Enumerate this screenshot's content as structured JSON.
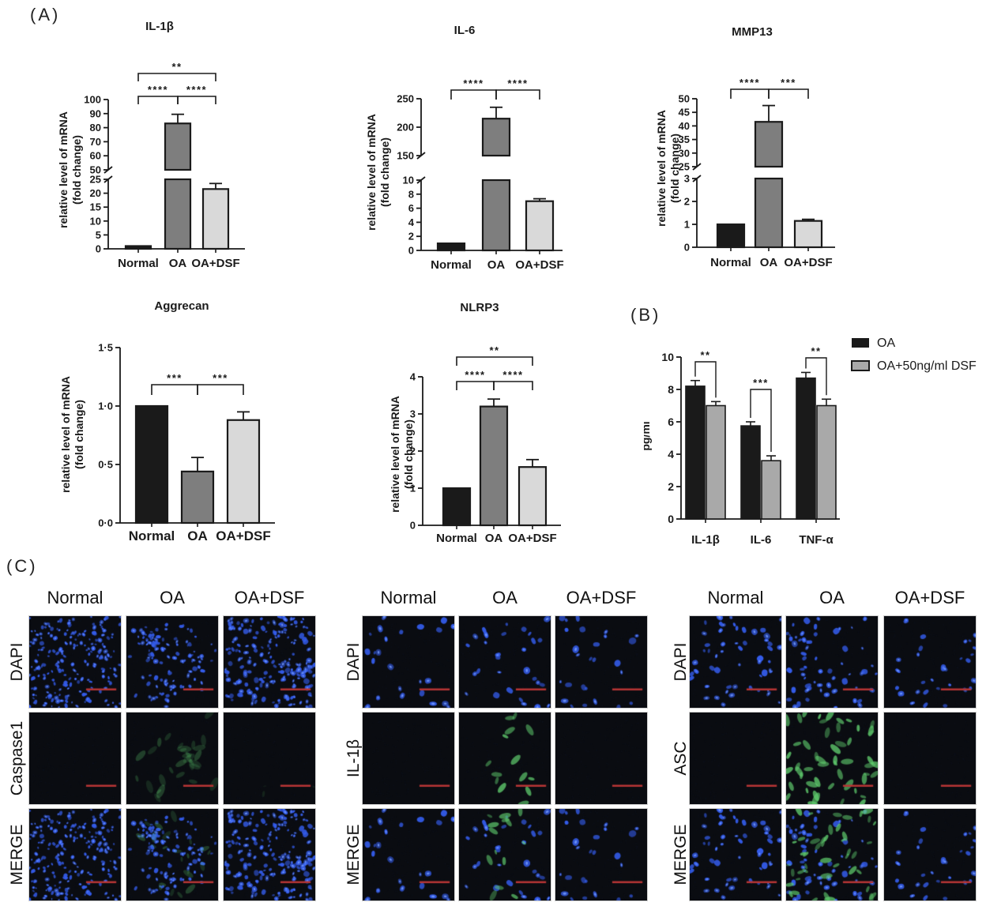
{
  "panels": {
    "a": "(A)",
    "b": "(B)",
    "c": "(C)"
  },
  "colors": {
    "bar_normal": "#1a1a1a",
    "bar_oa": "#7e7e7e",
    "bar_oadsf": "#d9d9d9",
    "elisa_oa": "#1a1a1a",
    "elisa_dsf": "#a9a9a9",
    "axis": "#1a1a1a",
    "scalebar": "#b63434",
    "dapi_blue": "#345ceb",
    "signal_green": "#60cd6e"
  },
  "chart_data": [
    {
      "id": "il1b",
      "type": "bar",
      "title": "IL-1β",
      "ylabel": [
        "relative level of mRNA",
        "(fold change)"
      ],
      "categories": [
        "Normal",
        "OA",
        "OA+DSF"
      ],
      "values": [
        1,
        83,
        21.5
      ],
      "errors": [
        0,
        6.5,
        2
      ],
      "axis": {
        "segments": [
          {
            "range": [
              0,
              25
            ],
            "ticks": [
              0,
              5,
              10,
              15,
              20,
              25
            ]
          },
          {
            "range": [
              50,
              100
            ],
            "ticks": [
              50,
              60,
              70,
              80,
              90,
              100
            ]
          }
        ]
      },
      "significance": [
        {
          "pair": [
            0,
            1
          ],
          "label": "****",
          "tier": 1
        },
        {
          "pair": [
            1,
            2
          ],
          "label": "****",
          "tier": 1
        },
        {
          "pair": [
            0,
            2
          ],
          "label": "**",
          "tier": 2
        }
      ]
    },
    {
      "id": "il6",
      "type": "bar",
      "title": "IL-6",
      "ylabel": [
        "relative level of mRNA",
        "(fold change)"
      ],
      "categories": [
        "Normal",
        "OA",
        "OA+DSF"
      ],
      "values": [
        1,
        215,
        7
      ],
      "errors": [
        0,
        20,
        0.35
      ],
      "axis": {
        "segments": [
          {
            "range": [
              0,
              10
            ],
            "ticks": [
              0,
              2,
              4,
              6,
              8,
              10
            ]
          },
          {
            "range": [
              150,
              250
            ],
            "ticks": [
              150,
              200,
              250
            ]
          }
        ]
      },
      "significance": [
        {
          "pair": [
            0,
            1
          ],
          "label": "****",
          "tier": 1
        },
        {
          "pair": [
            1,
            2
          ],
          "label": "****",
          "tier": 1
        }
      ]
    },
    {
      "id": "mmp13",
      "type": "bar",
      "title": "MMP13",
      "ylabel": [
        "relative level of mRNA",
        "(fold change)"
      ],
      "categories": [
        "Normal",
        "OA",
        "OA+DSF"
      ],
      "values": [
        1,
        41.5,
        1.15
      ],
      "errors": [
        0,
        6,
        0.07
      ],
      "axis": {
        "segments": [
          {
            "range": [
              0,
              3
            ],
            "ticks": [
              0,
              1,
              2,
              3
            ]
          },
          {
            "range": [
              25,
              50
            ],
            "ticks": [
              25,
              30,
              35,
              40,
              45,
              50
            ]
          }
        ]
      },
      "significance": [
        {
          "pair": [
            0,
            1
          ],
          "label": "****",
          "tier": 1
        },
        {
          "pair": [
            1,
            2
          ],
          "label": "***",
          "tier": 1
        }
      ]
    },
    {
      "id": "aggrecan",
      "type": "bar",
      "title": "Aggrecan",
      "ylabel": [
        "relative level of mRNA",
        "(fold change)"
      ],
      "categories": [
        "Normal",
        "OA",
        "OA+DSF"
      ],
      "values": [
        1.0,
        0.44,
        0.88
      ],
      "errors": [
        0,
        0.12,
        0.07
      ],
      "axis": {
        "segments": [
          {
            "range": [
              0,
              1.5
            ],
            "ticks": [
              0,
              0.5,
              1,
              1.5
            ],
            "tick_labels": [
              "0·0",
              "0·5",
              "1·0",
              "1·5"
            ]
          }
        ]
      },
      "significance": [
        {
          "pair": [
            0,
            1
          ],
          "label": "***",
          "tier": 1
        },
        {
          "pair": [
            1,
            2
          ],
          "label": "***",
          "tier": 1
        }
      ]
    },
    {
      "id": "nlrp3",
      "type": "bar",
      "title": "NLRP3",
      "ylabel": [
        "relative level of mRNA",
        "(fold change)"
      ],
      "categories": [
        "Normal",
        "OA",
        "OA+DSF"
      ],
      "values": [
        1,
        3.2,
        1.57
      ],
      "errors": [
        0,
        0.2,
        0.2
      ],
      "axis": {
        "segments": [
          {
            "range": [
              0,
              4
            ],
            "ticks": [
              0,
              1,
              2,
              3,
              4
            ]
          }
        ]
      },
      "significance": [
        {
          "pair": [
            0,
            1
          ],
          "label": "****",
          "tier": 1
        },
        {
          "pair": [
            1,
            2
          ],
          "label": "****",
          "tier": 1
        },
        {
          "pair": [
            0,
            2
          ],
          "label": "**",
          "tier": 2
        }
      ]
    },
    {
      "id": "elisa",
      "type": "grouped-bar",
      "title": "",
      "ylabel": [
        "pg/ml"
      ],
      "categories": [
        "IL-1β",
        "IL-6",
        "TNF-α"
      ],
      "series": [
        {
          "name": "OA",
          "values": [
            8.2,
            5.75,
            8.7
          ],
          "errors": [
            0.35,
            0.25,
            0.35
          ]
        },
        {
          "name": "OA+50ng/ml DSF",
          "values": [
            7.0,
            3.6,
            7.0
          ],
          "errors": [
            0.25,
            0.3,
            0.4
          ]
        }
      ],
      "axis": {
        "segments": [
          {
            "range": [
              0,
              10
            ],
            "ticks": [
              0,
              2,
              4,
              6,
              8,
              10
            ]
          }
        ]
      },
      "significance": [
        {
          "group": 0,
          "label": "**"
        },
        {
          "group": 1,
          "label": "***"
        },
        {
          "group": 2,
          "label": "**"
        }
      ],
      "legend": [
        "OA",
        "OA+50ng/ml DSF"
      ]
    }
  ],
  "panel_c": {
    "groups": [
      {
        "columns": [
          "Normal",
          "OA",
          "OA+DSF"
        ],
        "rows": [
          {
            "label": "DAPI",
            "cells": [
              {
                "seed": 11,
                "b": 210,
                "bs": 2.1
              },
              {
                "seed": 12,
                "b": 115,
                "bs": 2.3,
                "cluster": true
              },
              {
                "seed": 13,
                "b": 195,
                "bs": 2.6
              }
            ]
          },
          {
            "label": "Caspase1",
            "cells": [
              {
                "seed": 21
              },
              {
                "seed": 22,
                "g": 30,
                "gs": 6,
                "ga": 0.28,
                "cluster": true
              },
              {
                "seed": 23,
                "g": 3,
                "gs": 3,
                "ga": 0.15
              }
            ]
          },
          {
            "label": "MERGE",
            "cells": [
              {
                "seed": 11,
                "b": 210,
                "bs": 2.1
              },
              {
                "seed": 12,
                "b": 115,
                "bs": 2.3,
                "cluster": true,
                "g": 22,
                "gs": 5,
                "ga": 0.3
              },
              {
                "seed": 13,
                "b": 195,
                "bs": 2.6
              }
            ]
          }
        ]
      },
      {
        "columns": [
          "Normal",
          "OA",
          "OA+DSF"
        ],
        "rows": [
          {
            "label": "DAPI",
            "cells": [
              {
                "seed": 31,
                "b": 26,
                "bs": 3.3
              },
              {
                "seed": 32,
                "b": 30,
                "bs": 3.1
              },
              {
                "seed": 33,
                "b": 26,
                "bs": 3.3
              }
            ]
          },
          {
            "label": "IL-1β",
            "cells": [
              {
                "seed": 41
              },
              {
                "seed": 42,
                "g": 14,
                "gs": 5,
                "ga": 0.8,
                "garea": [
                  0.3,
                  0.8
                ]
              },
              {
                "seed": 43
              }
            ]
          },
          {
            "label": "MERGE",
            "cells": [
              {
                "seed": 31,
                "b": 26,
                "bs": 3.3
              },
              {
                "seed": 32,
                "b": 30,
                "bs": 3.1,
                "g": 14,
                "gs": 5,
                "ga": 0.75,
                "garea": [
                  0.3,
                  0.8
                ]
              },
              {
                "seed": 33,
                "b": 26,
                "bs": 3.3
              }
            ]
          }
        ]
      },
      {
        "columns": [
          "Normal",
          "OA",
          "OA+DSF"
        ],
        "rows": [
          {
            "label": "DAPI",
            "cells": [
              {
                "seed": 51,
                "b": 55,
                "bs": 2.9
              },
              {
                "seed": 52,
                "b": 60,
                "bs": 2.9
              },
              {
                "seed": 53,
                "b": 30,
                "bs": 2.9
              }
            ]
          },
          {
            "label": "ASC",
            "cells": [
              {
                "seed": 61
              },
              {
                "seed": 62,
                "g": 52,
                "gs": 5.5,
                "ga": 0.85
              },
              {
                "seed": 63
              }
            ]
          },
          {
            "label": "MERGE",
            "cells": [
              {
                "seed": 51,
                "b": 55,
                "bs": 2.9
              },
              {
                "seed": 52,
                "b": 60,
                "bs": 2.9,
                "g": 45,
                "gs": 5,
                "ga": 0.8
              },
              {
                "seed": 53,
                "b": 30,
                "bs": 2.9
              }
            ]
          }
        ]
      }
    ]
  }
}
